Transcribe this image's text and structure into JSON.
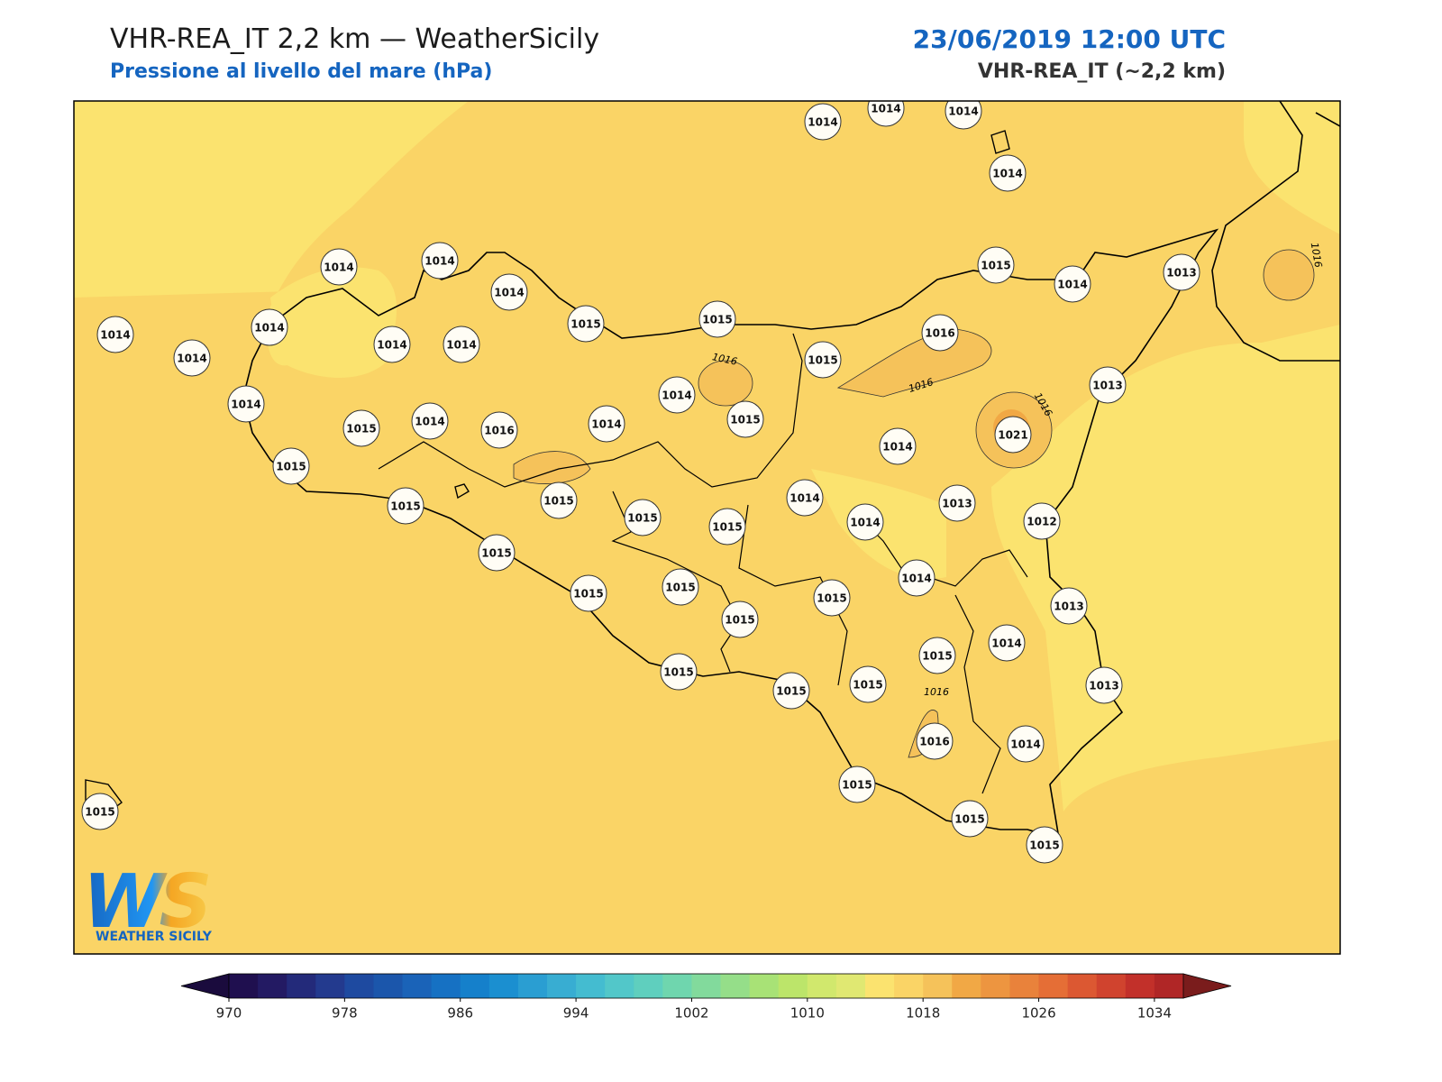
{
  "header": {
    "title": "VHR-REA_IT 2,2 km — WeatherSicily",
    "subtitle": "Pressione al livello del mare (hPa)",
    "date": "23/06/2019 12:00 UTC",
    "model": "VHR-REA_IT (~2,2 km)"
  },
  "map": {
    "stations": [
      1014,
      1014,
      1014,
      1014,
      1014,
      1014,
      1014,
      1015,
      1014,
      1013,
      1014,
      1014,
      1014,
      1014,
      1014,
      1015,
      1015,
      1016,
      1015,
      1013,
      1014,
      1014,
      1015,
      1014,
      1016,
      1014,
      1015,
      1021,
      1014,
      1015,
      1015,
      1015,
      1014,
      1013,
      1015,
      1015,
      1014,
      1012,
      1015,
      1014,
      1015,
      1015,
      1015,
      1013,
      1015,
      1014,
      1015,
      1015,
      1015,
      1015,
      1013,
      1016,
      1014,
      1015,
      1015,
      1015,
      1015
    ],
    "contour_labels": [
      1016,
      1016,
      1016,
      1016,
      1016
    ]
  },
  "colorbar": {
    "range": [
      970,
      1036
    ],
    "ticks": [
      970,
      978,
      986,
      994,
      1002,
      1010,
      1018,
      1026,
      1034
    ],
    "colors": [
      "#1f0f4f",
      "#231a63",
      "#232a7a",
      "#233a8e",
      "#1e4aa0",
      "#1b56ab",
      "#1a63b8",
      "#1671c3",
      "#1580cb",
      "#1b8fd0",
      "#2a9ed2",
      "#38add2",
      "#44bcd0",
      "#52c7c9",
      "#5fcfbe",
      "#6fd6ae",
      "#82da9c",
      "#95de89",
      "#a8e276",
      "#bce56a",
      "#d1e86d",
      "#e0e872",
      "#fbe36f",
      "#fad466",
      "#f5c25a",
      "#f1a845",
      "#ed9540",
      "#e9823b",
      "#e56e36",
      "#dc5832",
      "#d0432e",
      "#c2302a",
      "#b02626"
    ],
    "under": "#1a0b3d",
    "over": "#7a1c1c"
  },
  "logo": {
    "mark": "WS",
    "caption": "WEATHER SICILY"
  }
}
